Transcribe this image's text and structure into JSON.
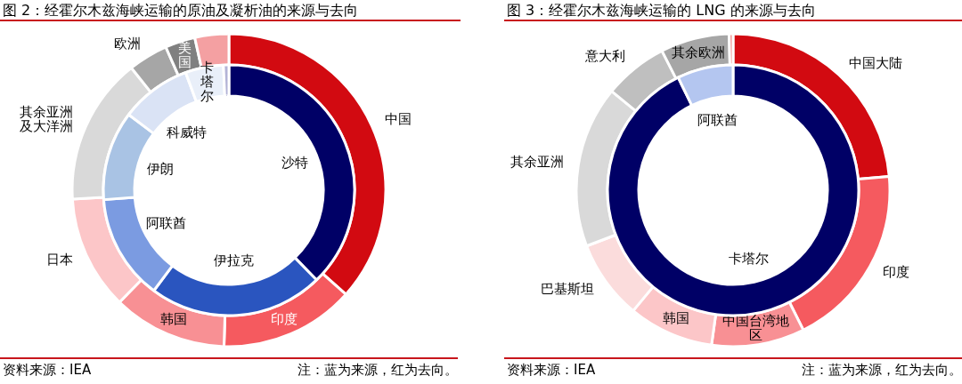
{
  "chart_data": [
    {
      "type": "donut",
      "title": "图 2：经霍尔木兹海峡运输的原油及凝析油的来源与去向",
      "categories": [
        "中国",
        "印度",
        "韩国",
        "日本",
        "其余亚洲及大洋洲",
        "欧洲",
        "美国",
        null
      ],
      "values": [
        36.6,
        13.9,
        11.8,
        11.8,
        15.2,
        4.1,
        3.1,
        3.5
      ],
      "colors": [
        "#d20a11",
        "#f55a5f",
        "#f89094",
        "#fcc6c8",
        "#d9d9d9",
        "#a6a6a6",
        "#808080",
        "#f4a0a2"
      ],
      "annotations": [
        "资料来源：IEA",
        "注：蓝为来源，红为去向。"
      ]
    },
    {
      "type": "donut",
      "categories": [
        "沙特",
        "伊拉克",
        "阿联酋",
        "伊朗",
        "科威特",
        "卡塔尔",
        null
      ],
      "values": [
        37.7,
        22.5,
        13.6,
        11.5,
        9.1,
        4.9,
        0.7
      ],
      "colors": [
        "#000066",
        "#2a55bf",
        "#7b9be1",
        "#a9c3e4",
        "#dae3f5",
        "#e9eff9",
        "#b3b3d6"
      ]
    },
    {
      "type": "donut",
      "title": "图 3：经霍尔木兹海峡运输的 LNG 的来源与去向",
      "categories": [
        "中国大陆",
        "印度",
        "中国台湾地区",
        "韩国",
        "巴基斯坦",
        "其余亚洲",
        "意大利",
        "其余欧洲",
        null
      ],
      "values": [
        23.6,
        19.0,
        9.6,
        8.8,
        8.2,
        16.7,
        6.6,
        7.1,
        0.4
      ],
      "colors": [
        "#d20a11",
        "#f55a5f",
        "#f89094",
        "#fcc6c8",
        "#fbdcdc",
        "#d9d9d9",
        "#bfbfbf",
        "#a6a6a6",
        "#f08a8a"
      ],
      "annotations": [
        "资料来源：IEA",
        "注：蓝为来源，红为去向。"
      ]
    },
    {
      "type": "donut",
      "categories": [
        "卡塔尔",
        "阿联酋"
      ],
      "values": [
        92.8,
        7.2
      ],
      "colors": [
        "#000066",
        "#b4c6f0"
      ]
    }
  ]
}
